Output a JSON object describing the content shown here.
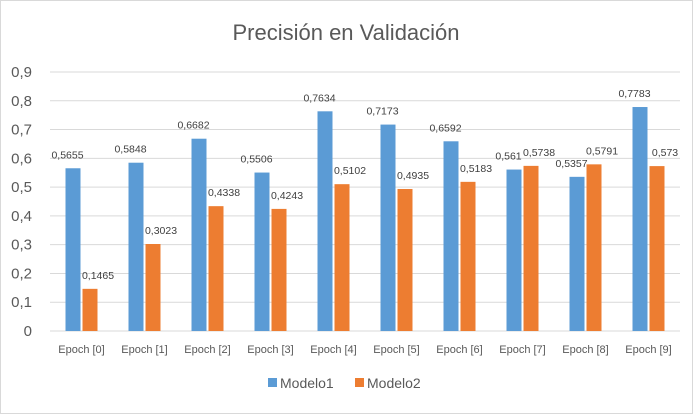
{
  "chart_data": {
    "type": "bar",
    "title": "Precisión en Validación",
    "xlabel": "",
    "ylabel": "",
    "ylim": [
      0,
      0.9
    ],
    "yticks": [
      "0",
      "0,1",
      "0,2",
      "0,3",
      "0,4",
      "0,5",
      "0,6",
      "0,7",
      "0,8",
      "0,9"
    ],
    "grid": true,
    "legend_position": "bottom",
    "categories": [
      "Epoch [0]",
      "Epoch [1]",
      "Epoch [2]",
      "Epoch [3]",
      "Epoch [4]",
      "Epoch [5]",
      "Epoch [6]",
      "Epoch [7]",
      "Epoch [8]",
      "Epoch [9]"
    ],
    "series": [
      {
        "name": "Modelo1",
        "color": "#5b9bd5",
        "values": [
          0.5655,
          0.5848,
          0.6682,
          0.5506,
          0.7634,
          0.7173,
          0.6592,
          0.561,
          0.5357,
          0.7783
        ],
        "labels": [
          "0,5655",
          "0,5848",
          "0,6682",
          "0,5506",
          "0,7634",
          "0,7173",
          "0,6592",
          "0,561",
          "0,5357",
          "0,7783"
        ]
      },
      {
        "name": "Modelo2",
        "color": "#ed7d31",
        "values": [
          0.1465,
          0.3023,
          0.4338,
          0.4243,
          0.5102,
          0.4935,
          0.5183,
          0.5738,
          0.5791,
          0.573
        ],
        "labels": [
          "0,1465",
          "0,3023",
          "0,4338",
          "0,4243",
          "0,5102",
          "0,4935",
          "0,5183",
          "0,5738",
          "0,5791",
          "0,573"
        ]
      }
    ]
  }
}
